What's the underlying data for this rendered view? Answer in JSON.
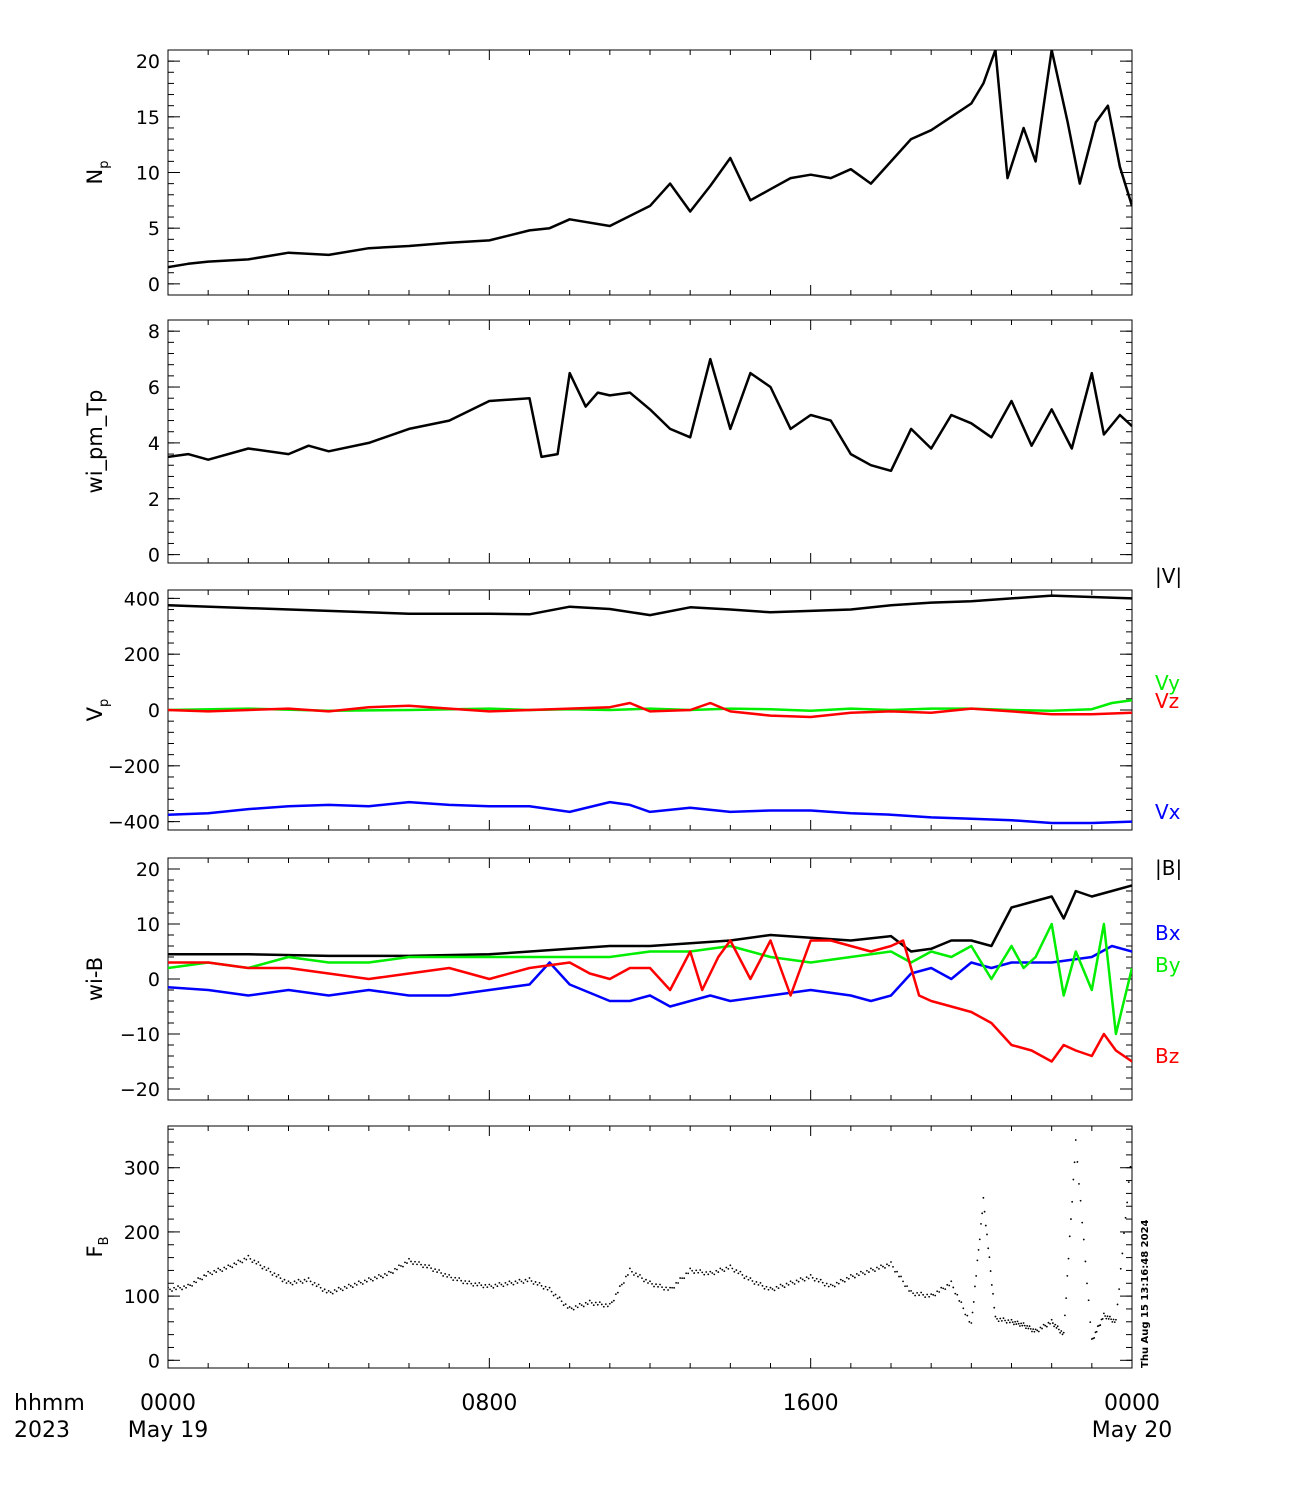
{
  "chart_data": {
    "type": "line",
    "x_range": [
      "2023-05-19 00:00",
      "2023-05-20 00:00"
    ],
    "x_ticks": [
      {
        "pos": 0,
        "label": "0000",
        "sublabel": "May 19"
      },
      {
        "pos": 8,
        "label": "0800",
        "sublabel": ""
      },
      {
        "pos": 16,
        "label": "1600",
        "sublabel": ""
      },
      {
        "pos": 24,
        "label": "0000",
        "sublabel": "May 20"
      }
    ],
    "x_row_label": "hhmm",
    "x_year_label": "2023",
    "timestamp": "Thu Aug 15 13:16:48 2024",
    "panels": [
      {
        "ylabel": "Np",
        "ylabel_main": "N",
        "ylabel_sub": "p",
        "ylim": [
          -1,
          21
        ],
        "yticks": [
          0,
          5,
          10,
          15,
          20
        ],
        "series": [
          {
            "color": "#000000",
            "style": "line",
            "x": [
              0,
              0.5,
              1,
              2,
              3,
              4,
              5,
              6,
              7,
              8,
              9,
              9.5,
              10,
              11,
              12,
              12.5,
              13,
              13.5,
              14,
              14.5,
              15,
              15.5,
              16,
              16.5,
              17,
              17.5,
              18,
              18.5,
              19,
              19.5,
              20,
              20.3,
              20.6,
              20.9,
              21.3,
              21.6,
              22,
              22.4,
              22.7,
              23.1,
              23.4,
              23.7,
              24
            ],
            "y": [
              1.5,
              1.8,
              2,
              2.2,
              2.8,
              2.6,
              3.2,
              3.4,
              3.7,
              3.9,
              4.8,
              5,
              5.8,
              5.2,
              7,
              9,
              6.5,
              8.8,
              11.3,
              7.5,
              8.5,
              9.5,
              9.8,
              9.5,
              10.3,
              9,
              11,
              13,
              13.8,
              15,
              16.2,
              18,
              21,
              9.5,
              14,
              11,
              21,
              14.5,
              9,
              14.5,
              16,
              10.5,
              7
            ]
          }
        ]
      },
      {
        "ylabel": "wi_pm_Tp",
        "ylim": [
          -0.3,
          8.4
        ],
        "yticks": [
          0,
          2,
          4,
          6,
          8
        ],
        "series": [
          {
            "color": "#000000",
            "style": "line",
            "x": [
              0,
              0.5,
              1,
              2,
              3,
              3.5,
              4,
              5,
              6,
              7,
              8,
              9,
              9.3,
              9.7,
              10,
              10.4,
              10.7,
              11,
              11.5,
              12,
              12.5,
              13,
              13.5,
              14,
              14.5,
              15,
              15.5,
              16,
              16.5,
              17,
              17.5,
              18,
              18.5,
              19,
              19.5,
              20,
              20.5,
              21,
              21.5,
              22,
              22.5,
              23,
              23.3,
              23.7,
              24
            ],
            "y": [
              3.5,
              3.6,
              3.4,
              3.8,
              3.6,
              3.9,
              3.7,
              4,
              4.5,
              4.8,
              5.5,
              5.6,
              3.5,
              3.6,
              6.5,
              5.3,
              5.8,
              5.7,
              5.8,
              5.2,
              4.5,
              4.2,
              7,
              4.5,
              6.5,
              6,
              4.5,
              5,
              4.8,
              3.6,
              3.2,
              3,
              4.5,
              3.8,
              5,
              4.7,
              4.2,
              5.5,
              3.9,
              5.2,
              3.8,
              6.5,
              4.3,
              5,
              4.6
            ]
          }
        ]
      },
      {
        "ylabel": "Vp",
        "ylabel_main": "V",
        "ylabel_sub": "p",
        "ylim": [
          -430,
          430
        ],
        "yticks": [
          -400,
          -200,
          0,
          200,
          400
        ],
        "ytick_labels": [
          "−400",
          "−200",
          "0",
          "200",
          "400"
        ],
        "series": [
          {
            "name": "|V|",
            "color": "#000000",
            "style": "line",
            "x": [
              0,
              2,
              4,
              6,
              8,
              9,
              10,
              11,
              12,
              13,
              14,
              15,
              16,
              17,
              18,
              19,
              20,
              21,
              22,
              23,
              24
            ],
            "y": [
              375,
              365,
              355,
              345,
              345,
              343,
              370,
              362,
              340,
              368,
              360,
              350,
              355,
              360,
              375,
              385,
              390,
              400,
              410,
              405,
              400
            ]
          },
          {
            "name": "Vy",
            "color": "#00ee00",
            "style": "line",
            "x": [
              0,
              2,
              4,
              6,
              8,
              9,
              10,
              11,
              12,
              13,
              14,
              15,
              16,
              17,
              18,
              19,
              20,
              21,
              22,
              23,
              23.5,
              24
            ],
            "y": [
              0,
              5,
              -3,
              0,
              5,
              0,
              3,
              0,
              5,
              0,
              5,
              3,
              -3,
              5,
              0,
              5,
              5,
              0,
              -3,
              3,
              25,
              35
            ]
          },
          {
            "name": "Vz",
            "color": "#ff0000",
            "style": "line",
            "x": [
              0,
              1,
              2,
              3,
              4,
              5,
              6,
              7,
              8,
              9,
              10,
              11,
              11.5,
              12,
              13,
              13.5,
              14,
              15,
              16,
              17,
              18,
              19,
              20,
              21,
              22,
              23,
              24
            ],
            "y": [
              0,
              -5,
              0,
              5,
              -5,
              10,
              15,
              5,
              -5,
              0,
              5,
              10,
              25,
              -5,
              0,
              25,
              -5,
              -20,
              -25,
              -10,
              -5,
              -10,
              5,
              -5,
              -15,
              -15,
              -10
            ]
          },
          {
            "name": "Vx",
            "color": "#0000ff",
            "style": "line",
            "x": [
              0,
              1,
              2,
              3,
              4,
              5,
              6,
              7,
              8,
              9,
              10,
              11,
              11.5,
              12,
              13,
              14,
              15,
              16,
              17,
              18,
              19,
              20,
              21,
              22,
              23,
              24
            ],
            "y": [
              -375,
              -370,
              -355,
              -345,
              -340,
              -345,
              -330,
              -340,
              -345,
              -345,
              -365,
              -330,
              -340,
              -365,
              -350,
              -365,
              -360,
              -360,
              -370,
              -375,
              -385,
              -390,
              -395,
              -405,
              -405,
              -400
            ]
          }
        ]
      },
      {
        "ylabel": "wi-B",
        "ylim": [
          -22,
          22
        ],
        "yticks": [
          -20,
          -10,
          0,
          10,
          20
        ],
        "ytick_labels": [
          "−20",
          "−10",
          "0",
          "10",
          "20"
        ],
        "series": [
          {
            "name": "|B|",
            "color": "#000000",
            "style": "line",
            "x": [
              0,
              2,
              4,
              6,
              8,
              10,
              11,
              12,
              13,
              14,
              15,
              16,
              17,
              18,
              18.5,
              19,
              19.5,
              20,
              20.5,
              21,
              21.5,
              22,
              22.3,
              22.6,
              23,
              23.5,
              24
            ],
            "y": [
              4.5,
              4.5,
              4.2,
              4.2,
              4.5,
              5.5,
              6,
              6,
              6.5,
              7,
              8,
              7.5,
              7,
              7.8,
              5,
              5.5,
              7,
              7,
              6,
              13,
              14,
              15,
              11,
              16,
              15,
              16,
              17
            ]
          },
          {
            "name": "Bx",
            "color": "#0000ff",
            "style": "line",
            "x": [
              0,
              1,
              2,
              3,
              4,
              5,
              6,
              7,
              8,
              9,
              9.5,
              10,
              11,
              11.5,
              12,
              12.5,
              13,
              13.5,
              14,
              15,
              16,
              17,
              17.5,
              18,
              18.5,
              19,
              19.5,
              20,
              20.5,
              21,
              22,
              23,
              23.5,
              24
            ],
            "y": [
              -1.5,
              -2,
              -3,
              -2,
              -3,
              -2,
              -3,
              -3,
              -2,
              -1,
              3,
              -1,
              -4,
              -4,
              -3,
              -5,
              -4,
              -3,
              -4,
              -3,
              -2,
              -3,
              -4,
              -3,
              1,
              2,
              0,
              3,
              2,
              3,
              3,
              4,
              6,
              5
            ]
          },
          {
            "name": "By",
            "color": "#00ee00",
            "style": "line",
            "x": [
              0,
              1,
              2,
              3,
              4,
              5,
              6,
              7,
              8,
              9,
              10,
              11,
              12,
              13,
              14,
              15,
              16,
              17,
              18,
              18.5,
              19,
              19.5,
              20,
              20.5,
              21,
              21.3,
              21.6,
              22,
              22.3,
              22.6,
              23,
              23.3,
              23.6,
              24
            ],
            "y": [
              2,
              3,
              2,
              4,
              3,
              3,
              4,
              4,
              4,
              4,
              4,
              4,
              5,
              5,
              6,
              4,
              3,
              4,
              5,
              3,
              5,
              4,
              6,
              0,
              6,
              2,
              4,
              10,
              -3,
              5,
              -2,
              10,
              -10,
              2
            ]
          },
          {
            "name": "Bz",
            "color": "#ff0000",
            "style": "line",
            "x": [
              0,
              1,
              2,
              3,
              4,
              5,
              6,
              7,
              8,
              9,
              10,
              10.5,
              11,
              11.5,
              12,
              12.5,
              13,
              13.3,
              13.7,
              14,
              14.5,
              15,
              15.5,
              16,
              16.5,
              17,
              17.5,
              18,
              18.3,
              18.7,
              19,
              19.5,
              20,
              20.5,
              21,
              21.5,
              22,
              22.3,
              22.6,
              23,
              23.3,
              23.6,
              24
            ],
            "y": [
              3,
              3,
              2,
              2,
              1,
              0,
              1,
              2,
              0,
              2,
              3,
              1,
              0,
              2,
              2,
              -2,
              5,
              -2,
              4,
              7,
              0,
              7,
              -3,
              7,
              7,
              6,
              5,
              6,
              7,
              -3,
              -4,
              -5,
              -6,
              -8,
              -12,
              -13,
              -15,
              -12,
              -13,
              -14,
              -10,
              -13,
              -15
            ]
          }
        ]
      },
      {
        "ylabel": "FB",
        "ylabel_main": "F",
        "ylabel_sub": "B",
        "ylim": [
          -12,
          365
        ],
        "yticks": [
          0,
          100,
          200,
          300
        ],
        "series": [
          {
            "color": "#000000",
            "style": "dots",
            "x": [
              0,
              0.5,
              1,
              1.5,
              2,
              2.5,
              3,
              3.5,
              4,
              4.5,
              5,
              5.5,
              6,
              6.5,
              7,
              7.5,
              8,
              8.5,
              9,
              9.5,
              10,
              10.5,
              11,
              11.5,
              12,
              12.5,
              13,
              13.5,
              14,
              14.5,
              15,
              15.5,
              16,
              16.5,
              17,
              17.5,
              18,
              18.5,
              19,
              19.5,
              20,
              20.3,
              20.6,
              21,
              21.3,
              21.6,
              22,
              22.3,
              22.6,
              23,
              23.3,
              23.6,
              24
            ],
            "y": [
              110,
              115,
              135,
              145,
              160,
              140,
              120,
              125,
              105,
              115,
              125,
              135,
              155,
              145,
              130,
              120,
              115,
              120,
              125,
              110,
              80,
              90,
              85,
              140,
              120,
              110,
              140,
              135,
              145,
              125,
              110,
              120,
              130,
              115,
              130,
              140,
              150,
              105,
              100,
              120,
              55,
              250,
              65,
              60,
              55,
              45,
              60,
              40,
              340,
              30,
              70,
              60,
              330
            ]
          }
        ]
      }
    ]
  }
}
